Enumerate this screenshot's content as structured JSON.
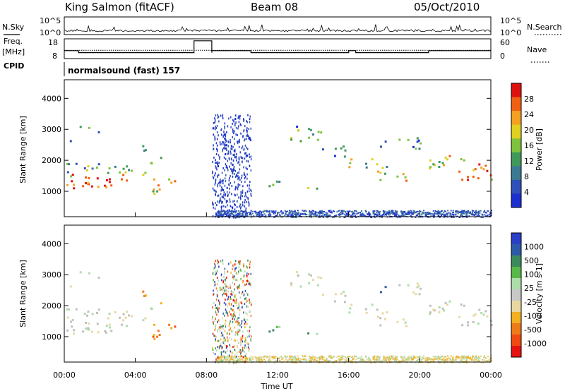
{
  "header": {
    "station": "King Salmon (fitACF)",
    "beam": "Beam 08",
    "date": "05/Oct/2010"
  },
  "top_panel": {
    "left_label_1": "N.Sky",
    "left_label_2": "Freq.",
    "left_label_3": "[MHz]",
    "left_label_4": "CPID",
    "right_label_1": "N.Search",
    "right_label_2": "Nave",
    "sky_ticks": [
      "10^5",
      "10^0"
    ],
    "search_ticks": [
      "10^5",
      "10^0"
    ],
    "freq_ticks": [
      "18",
      "8"
    ],
    "nave_ticks": [
      "60",
      "0"
    ],
    "cpid_text": "normalsound (fast) 157"
  },
  "colors": {
    "power_scale": [
      "#1c2fd0",
      "#2f50b8",
      "#3b7a92",
      "#3f9a5a",
      "#7fc23d",
      "#e0d020",
      "#f5a020",
      "#f06010",
      "#e01010"
    ],
    "velocity_scale": [
      "#e81010",
      "#f04a10",
      "#f07a18",
      "#f3b020",
      "#e8d8a0",
      "#c8c8c8",
      "#aeddaa",
      "#58b848",
      "#3c8a5c",
      "#2c5aa8",
      "#2a3ec8"
    ],
    "scatter_gray": "#c0c0bc"
  },
  "chart_data": [
    {
      "type": "heatmap",
      "title": "Power",
      "xlabel": "Time UT",
      "ylabel": "Slant Range [km]",
      "x_ticks": [
        "00:00",
        "04:00",
        "08:00",
        "12:00",
        "16:00",
        "20:00",
        "00:00"
      ],
      "y_ticks": [
        "1000",
        "2000",
        "3000",
        "4000"
      ],
      "ylim": [
        180,
        4600
      ],
      "xlim_hours": [
        0,
        24
      ],
      "colorbar": {
        "label": "Power [dB]",
        "ticks": [
          "4",
          "8",
          "12",
          "16",
          "20",
          "24",
          "28"
        ],
        "range": [
          0,
          30
        ]
      }
    },
    {
      "type": "heatmap",
      "title": "Velocity",
      "xlabel": "Time UT",
      "ylabel": "Slant Range [km]",
      "x_ticks": [
        "00:00",
        "04:00",
        "08:00",
        "12:00",
        "16:00",
        "20:00",
        "00:00"
      ],
      "y_ticks": [
        "1000",
        "2000",
        "3000",
        "4000"
      ],
      "ylim": [
        180,
        4600
      ],
      "xlim_hours": [
        0,
        24
      ],
      "colorbar": {
        "label": "Velocity [m s-1]",
        "ticks": [
          "1000",
          "500",
          "100",
          "25",
          "-25",
          "-100",
          "-500",
          "-1000"
        ]
      }
    }
  ]
}
